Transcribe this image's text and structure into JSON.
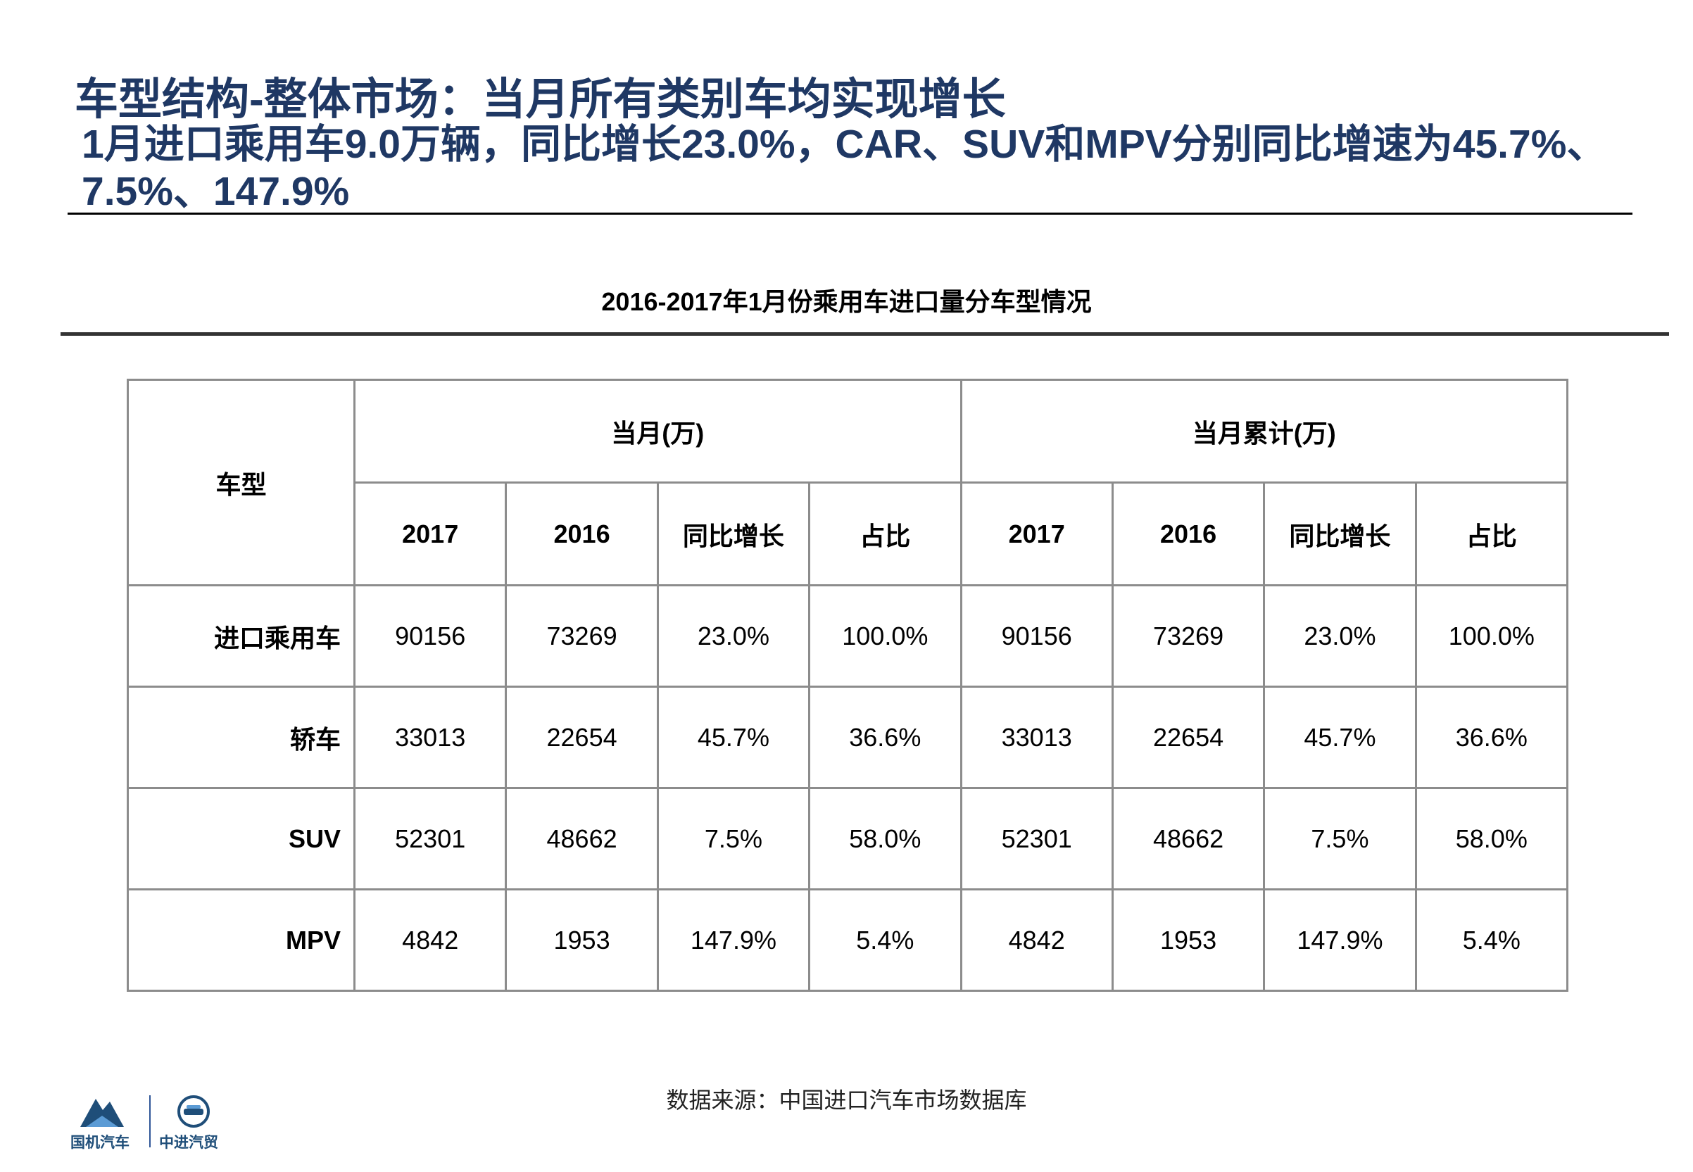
{
  "header": {
    "title": "车型结构-整体市场：当月所有类别车均实现增长",
    "subtitle": "1月进口乘用车9.0万辆，同比增长23.0%，CAR、SUV和MPV分别同比增速为45.7%、7.5%、147.9%"
  },
  "table": {
    "caption": "2016-2017年1月份乘用车进口量分车型情况",
    "row_header_label": "车型",
    "groups": [
      "当月(万)",
      "当月累计(万)"
    ],
    "subcolumns": [
      "2017",
      "2016",
      "同比增长",
      "占比",
      "2017",
      "2016",
      "同比增长",
      "占比"
    ],
    "rows": [
      {
        "label": "进口乘用车",
        "cells": [
          "90156",
          "73269",
          "23.0%",
          "100.0%",
          "90156",
          "73269",
          "23.0%",
          "100.0%"
        ]
      },
      {
        "label": "轿车",
        "cells": [
          "33013",
          "22654",
          "45.7%",
          "36.6%",
          "33013",
          "22654",
          "45.7%",
          "36.6%"
        ]
      },
      {
        "label": "SUV",
        "cells": [
          "52301",
          "48662",
          "7.5%",
          "58.0%",
          "52301",
          "48662",
          "7.5%",
          "58.0%"
        ]
      },
      {
        "label": "MPV",
        "cells": [
          "4842",
          "1953",
          "147.9%",
          "5.4%",
          "4842",
          "1953",
          "147.9%",
          "5.4%"
        ]
      }
    ]
  },
  "footer": {
    "source": "数据来源：中国进口汽车市场数据库",
    "logo_left_label": "国机汽车",
    "logo_right_label": "中进汽贸",
    "colors": {
      "brand_dark": "#1f3864",
      "brand_blue": "#2f5597",
      "logo_cyan": "#5b9bd5"
    }
  }
}
